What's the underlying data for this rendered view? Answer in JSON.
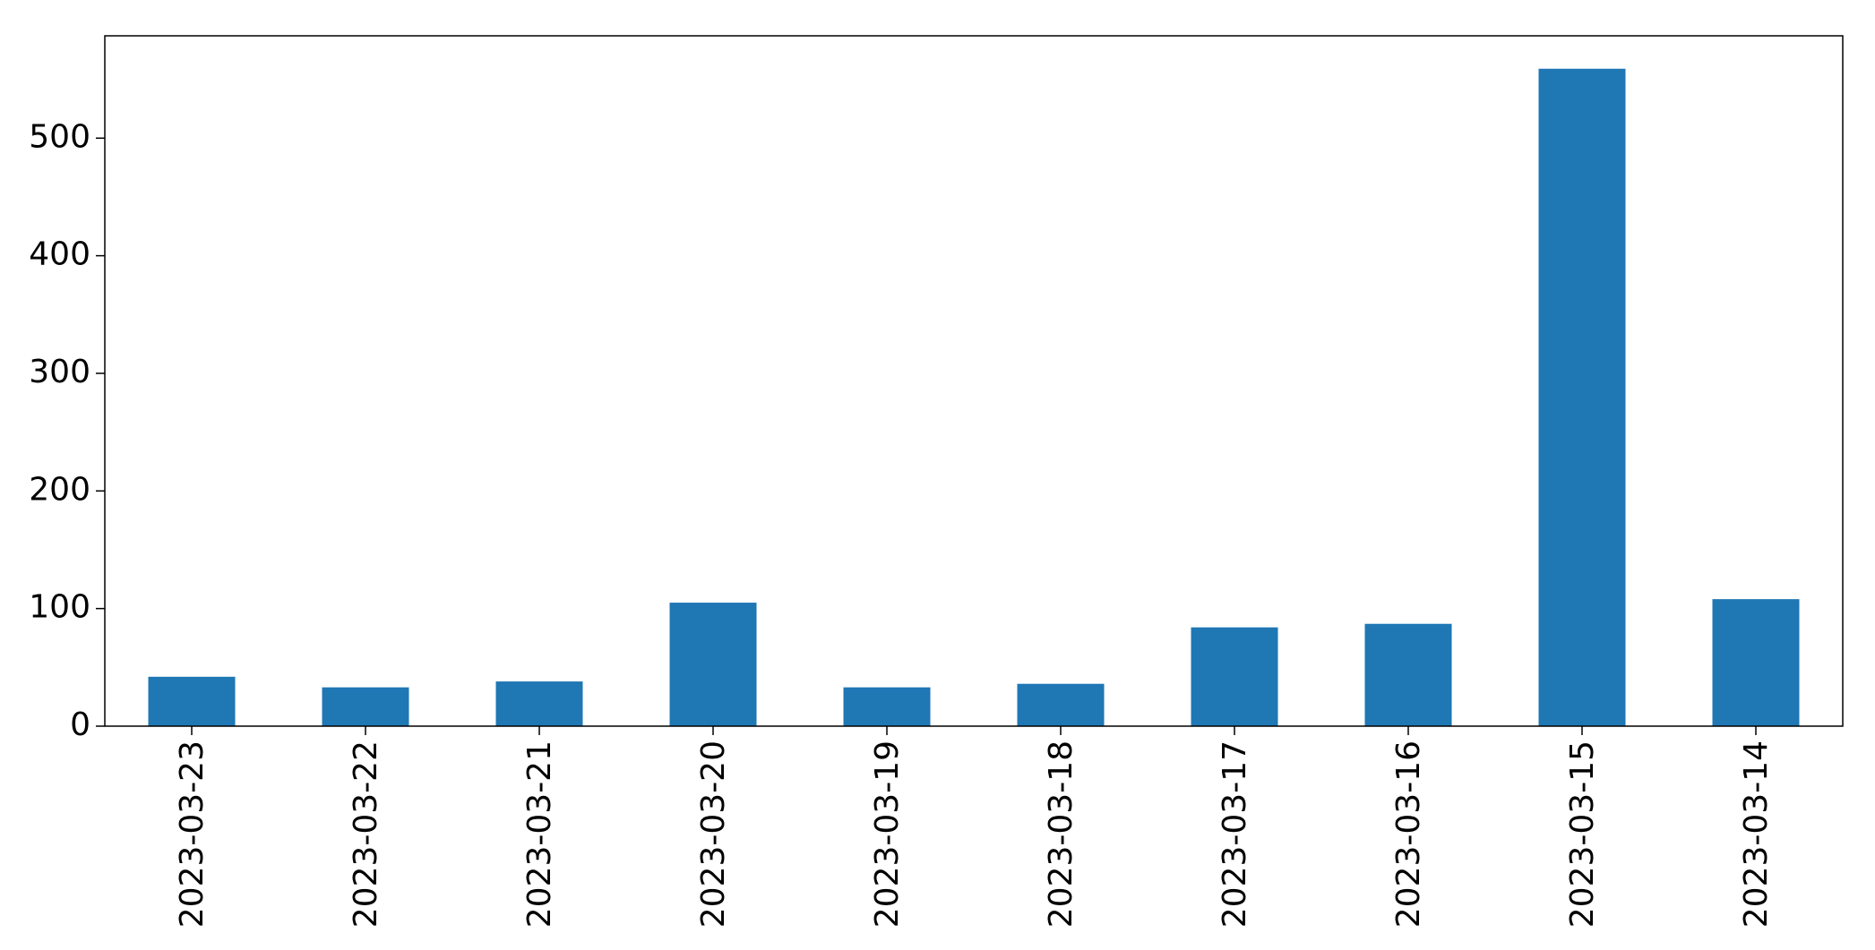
{
  "chart_data": {
    "type": "bar",
    "title": "",
    "xlabel": "",
    "ylabel": "",
    "categories": [
      "2023-03-23",
      "2023-03-22",
      "2023-03-21",
      "2023-03-20",
      "2023-03-19",
      "2023-03-18",
      "2023-03-17",
      "2023-03-16",
      "2023-03-15",
      "2023-03-14"
    ],
    "values": [
      42,
      33,
      38,
      105,
      33,
      36,
      84,
      87,
      559,
      108
    ],
    "ylim": [
      0,
      587
    ],
    "yticks": [
      0,
      100,
      200,
      300,
      400,
      500
    ],
    "ytick_labels": [
      "0",
      "100",
      "200",
      "300",
      "400",
      "500"
    ],
    "grid": false,
    "legend": false,
    "x_tick_rotation": "vertical",
    "colors": {
      "bar": "#1f77b4",
      "axis": "#000000",
      "background": "#ffffff"
    }
  }
}
